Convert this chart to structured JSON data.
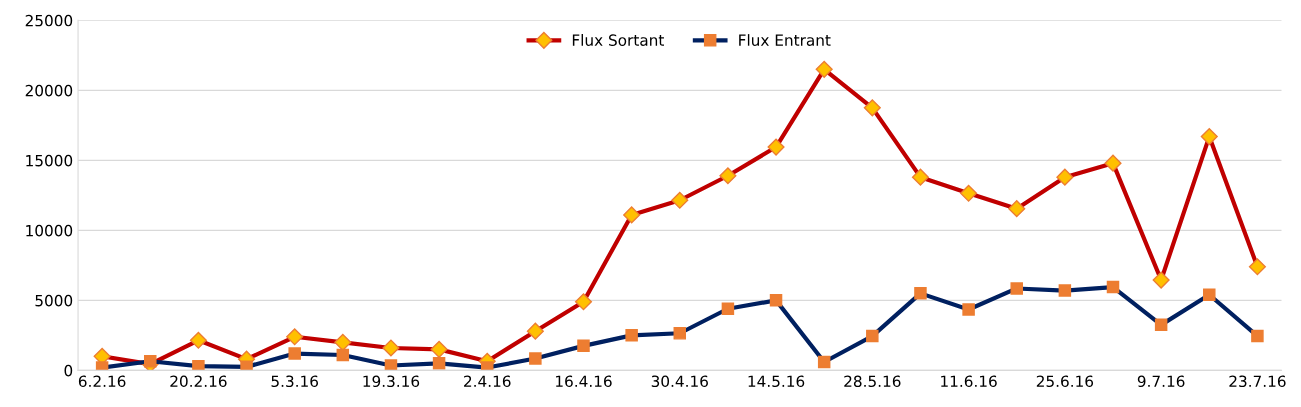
{
  "chart_data": {
    "type": "line",
    "categories": [
      "6.2.16",
      null,
      "20.2.16",
      null,
      "5.3.16",
      null,
      "19.3.16",
      null,
      "2.4.16",
      null,
      "16.4.16",
      null,
      "30.4.16",
      null,
      "14.5.16",
      null,
      "28.5.16",
      null,
      "11.6.16",
      null,
      "25.6.16",
      null,
      "9.7.16",
      null,
      "23.7.16"
    ],
    "series": [
      {
        "name": "Flux Sortant",
        "color": "#c00000",
        "marker": "diamond",
        "values": [
          1000,
          450,
          2150,
          800,
          2400,
          2000,
          1600,
          1500,
          650,
          2800,
          4900,
          11100,
          12150,
          13900,
          15950,
          21500,
          18750,
          13800,
          12650,
          11550,
          13800,
          14800,
          6450,
          16700,
          7400
        ]
      },
      {
        "name": "Flux Entrant",
        "color": "#002060",
        "marker": "square",
        "values": [
          200,
          650,
          300,
          250,
          1200,
          1100,
          350,
          500,
          200,
          850,
          1750,
          2500,
          2650,
          4400,
          5000,
          600,
          2450,
          5500,
          4350,
          5850,
          5700,
          5950,
          3250,
          5400,
          2450
        ]
      }
    ],
    "ylim": [
      0,
      25000
    ],
    "yticks": [
      0,
      5000,
      10000,
      15000,
      20000,
      25000
    ],
    "grid": "y",
    "legend": "top"
  }
}
